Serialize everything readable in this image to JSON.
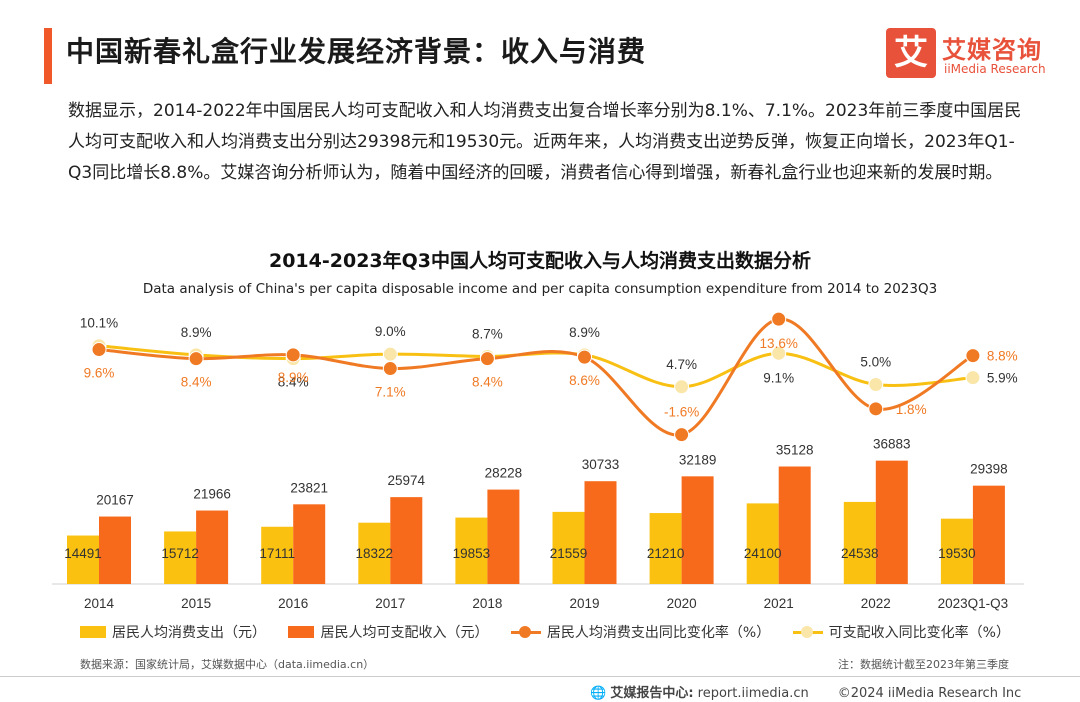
{
  "header": {
    "title": "中国新春礼盒行业发展经济背景：收入与消费",
    "brand_glyph": "艾",
    "brand_name": "艾媒咨询",
    "brand_sub": "iiMedia Research"
  },
  "body_text": "数据显示，2014-2022年中国居民人均可支配收入和人均消费支出复合增长率分别为8.1%、7.1%。2023年前三季度中国居民人均可支配收入和人均消费支出分别达29398元和19530元。近两年来，人均消费支出逆势反弹，恢复正向增长，2023年Q1-Q3同比增长8.8%。艾媒咨询分析师认为，随着中国经济的回暖，消费者信心得到增强，新春礼盒行业也迎来新的发展时期。",
  "chart_data": {
    "type": "bar",
    "title": "2014-2023年Q3中国人均可支配收入与人均消费支出数据分析",
    "subtitle": "Data analysis of China's per capita disposable income and per capita consumption expenditure from 2014 to 2023Q3",
    "categories": [
      "2014",
      "2015",
      "2016",
      "2017",
      "2018",
      "2019",
      "2020",
      "2021",
      "2022",
      "2023Q1-Q3"
    ],
    "series": [
      {
        "name": "居民人均消费支出（元）",
        "type": "bar",
        "color": "#fbc111",
        "values": [
          14491,
          15712,
          17111,
          18322,
          19853,
          21559,
          21210,
          24100,
          24538,
          19530
        ]
      },
      {
        "name": "居民人均可支配收入（元）",
        "type": "bar",
        "color": "#f76a1c",
        "values": [
          20167,
          21966,
          23821,
          25974,
          28228,
          30733,
          32189,
          35128,
          36883,
          29398
        ]
      },
      {
        "name": "居民人均消费支出同比变化率（%）",
        "type": "line",
        "color": "#f07a24",
        "marker": "#f07a24",
        "values": [
          9.6,
          8.4,
          8.9,
          7.1,
          8.4,
          8.6,
          -1.6,
          13.6,
          1.8,
          8.8
        ]
      },
      {
        "name": "可支配收入同比变化率（%）",
        "type": "line",
        "color": "#f8c012",
        "marker": "#fae6a8",
        "values": [
          10.1,
          8.9,
          8.4,
          9.0,
          8.7,
          8.9,
          4.7,
          9.1,
          5.0,
          5.9
        ]
      }
    ],
    "consumption_rate_labels": [
      "9.6%",
      "8.4%",
      "8.9%",
      "7.1%",
      "8.4%",
      "8.6%",
      "-1.6%",
      "13.6%",
      "1.8%",
      "8.8%"
    ],
    "income_rate_labels": [
      "10.1%",
      "8.9%",
      "8.4%",
      "9.0%",
      "8.7%",
      "8.9%",
      "4.7%",
      "9.1%",
      "5.0%",
      "5.9%"
    ],
    "bar_ylim": [
      0,
      40000
    ],
    "rate_ylim": [
      -4,
      14
    ]
  },
  "source": "数据来源：国家统计局，艾媒数据中心（data.iimedia.cn）",
  "note": "注：数据统计截至2023年第三季度",
  "footer": {
    "center_label": "艾媒报告中心:",
    "center_url": "report.iimedia.cn",
    "copyright": "©2024  iiMedia Research  Inc"
  }
}
